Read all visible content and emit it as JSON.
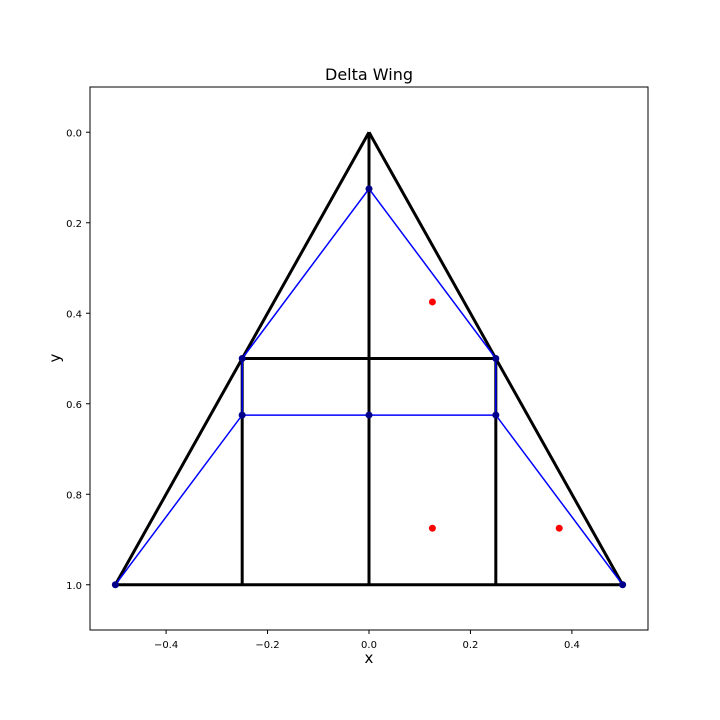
{
  "chart_data": {
    "type": "line",
    "title": "Delta Wing",
    "xlabel": "x",
    "ylabel": "y",
    "xlim": [
      -0.55,
      0.55
    ],
    "ylim": [
      1.1,
      -0.1
    ],
    "y_inverted": true,
    "grid": false,
    "legend": "none",
    "x_ticks": [
      -0.4,
      -0.2,
      0.0,
      0.2,
      0.4
    ],
    "x_tick_labels": [
      "−0.4",
      "−0.2",
      "0.0",
      "0.2",
      "0.4"
    ],
    "y_ticks": [
      0.0,
      0.2,
      0.4,
      0.6,
      0.8,
      1.0
    ],
    "y_tick_labels": [
      "0.0",
      "0.2",
      "0.4",
      "0.6",
      "0.8",
      "1.0"
    ],
    "series": [
      {
        "role": "wing panel edges",
        "style": "line",
        "color": "#000000",
        "segments": [
          [
            [
              0.0,
              0.0
            ],
            [
              -0.5,
              1.0
            ]
          ],
          [
            [
              0.0,
              0.0
            ],
            [
              0.5,
              1.0
            ]
          ],
          [
            [
              -0.5,
              1.0
            ],
            [
              0.5,
              1.0
            ]
          ],
          [
            [
              0.0,
              0.0
            ],
            [
              0.0,
              1.0
            ]
          ],
          [
            [
              -0.25,
              0.5
            ],
            [
              0.25,
              0.5
            ]
          ],
          [
            [
              -0.25,
              0.5
            ],
            [
              -0.25,
              1.0
            ]
          ],
          [
            [
              0.25,
              0.5
            ],
            [
              0.25,
              1.0
            ]
          ]
        ]
      },
      {
        "role": "vortex lattice lines",
        "style": "line-markers",
        "color": "#0000ff",
        "marker_color": "#00008b",
        "segments": [
          [
            [
              -0.5,
              1.0
            ],
            [
              -0.25,
              0.625
            ],
            [
              -0.25,
              0.5
            ],
            [
              0.0,
              0.125
            ],
            [
              0.25,
              0.5
            ],
            [
              0.25,
              0.625
            ],
            [
              0.5,
              1.0
            ]
          ],
          [
            [
              -0.25,
              0.625
            ],
            [
              0.0,
              0.625
            ],
            [
              0.25,
              0.625
            ]
          ]
        ]
      },
      {
        "role": "control points",
        "style": "markers",
        "color": "#ff0000",
        "points": [
          [
            0.125,
            0.375
          ],
          [
            0.125,
            0.875
          ],
          [
            0.375,
            0.875
          ]
        ]
      }
    ]
  }
}
